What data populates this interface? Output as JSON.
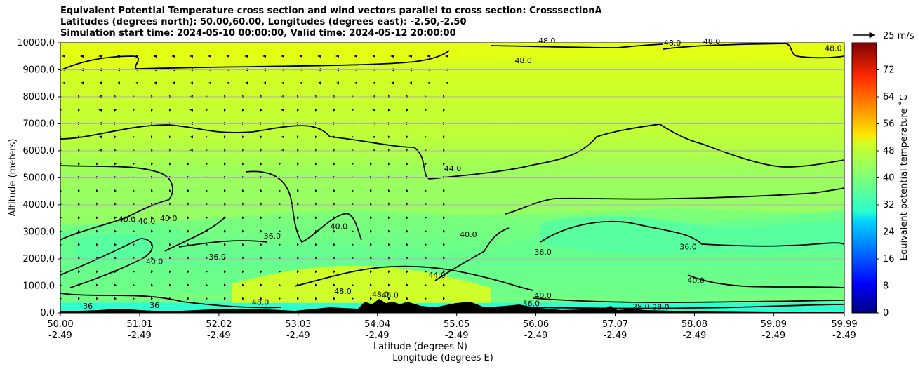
{
  "title_lines": [
    "Equivalent Potential Temperature cross section and wind vectors parallel to cross section: CrosssectionA",
    "Latitudes (degrees north): 50.00,60.00, Longitudes (degrees east): -2.50,-2.50",
    "Simulation start time: 2024-05-10 00:00:00, Valid time: 2024-05-12 20:00:00"
  ],
  "chart_data": {
    "type": "heatmap",
    "ylabel": "Altitude (meters)",
    "xlabel_lines": [
      "Latitude (degrees N)",
      "Longitude (degrees E)"
    ],
    "x_range": [
      50.0,
      59.99
    ],
    "y_range": [
      0,
      10000
    ],
    "y_ticks": [
      "0.0",
      "1000.0",
      "2000.0",
      "3000.0",
      "4000.0",
      "5000.0",
      "6000.0",
      "7000.0",
      "8000.0",
      "9000.0",
      "10000.0"
    ],
    "y_tick_values": [
      0,
      1000,
      2000,
      3000,
      4000,
      5000,
      6000,
      7000,
      8000,
      9000,
      10000
    ],
    "x_ticks": [
      {
        "lat": "50.00",
        "lon": "-2.49",
        "value": 50.0
      },
      {
        "lat": "51.01",
        "lon": "-2.49",
        "value": 51.01
      },
      {
        "lat": "52.02",
        "lon": "-2.49",
        "value": 52.02
      },
      {
        "lat": "53.03",
        "lon": "-2.49",
        "value": 53.03
      },
      {
        "lat": "54.04",
        "lon": "-2.49",
        "value": 54.04
      },
      {
        "lat": "55.05",
        "lon": "-2.49",
        "value": 55.05
      },
      {
        "lat": "56.06",
        "lon": "-2.49",
        "value": 56.06
      },
      {
        "lat": "57.07",
        "lon": "-2.49",
        "value": 57.07
      },
      {
        "lat": "58.08",
        "lon": "-2.49",
        "value": 58.08
      },
      {
        "lat": "59.09",
        "lon": "-2.49",
        "value": 59.09
      },
      {
        "lat": "59.99",
        "lon": "-2.49",
        "value": 59.99
      }
    ],
    "grid": "horizontal",
    "colorbar": {
      "label": "Equivalent potential temperature ˚C",
      "ticks": [
        "0",
        "8",
        "16",
        "24",
        "32",
        "40",
        "48",
        "56",
        "64",
        "72"
      ],
      "tick_values": [
        0,
        8,
        16,
        24,
        32,
        40,
        48,
        56,
        64,
        72
      ],
      "range": [
        0,
        80
      ],
      "colormap": "jet"
    },
    "quiver_key": "25 m/s",
    "contour_labels": [
      {
        "text": "48.0",
        "x": 55.9,
        "y": 9250
      },
      {
        "text": "48.0",
        "x": 56.2,
        "y": 9970
      },
      {
        "text": "48.0",
        "x": 57.8,
        "y": 9900
      },
      {
        "text": "48.0",
        "x": 58.3,
        "y": 9950
      },
      {
        "text": "48.0",
        "x": 59.85,
        "y": 9700
      },
      {
        "text": "44.0",
        "x": 55.0,
        "y": 5250
      },
      {
        "text": "40.0",
        "x": 50.85,
        "y": 3370
      },
      {
        "text": "40.0",
        "x": 51.1,
        "y": 3300
      },
      {
        "text": "40.0",
        "x": 51.38,
        "y": 3400
      },
      {
        "text": "40.0",
        "x": 51.2,
        "y": 1800
      },
      {
        "text": "36.0",
        "x": 52.0,
        "y": 1980
      },
      {
        "text": "36.0",
        "x": 52.7,
        "y": 2750
      },
      {
        "text": "40.0",
        "x": 53.55,
        "y": 3100
      },
      {
        "text": "40.0",
        "x": 55.2,
        "y": 2800
      },
      {
        "text": "44.0",
        "x": 54.8,
        "y": 1300
      },
      {
        "text": "36.0",
        "x": 56.15,
        "y": 2150
      },
      {
        "text": "36.0",
        "x": 58.0,
        "y": 2350
      },
      {
        "text": "40.0",
        "x": 58.1,
        "y": 1100
      },
      {
        "text": "48.0",
        "x": 52.55,
        "y": 300
      },
      {
        "text": "48.0",
        "x": 53.6,
        "y": 700
      },
      {
        "text": "48.0",
        "x": 54.08,
        "y": 580
      },
      {
        "text": "48.0",
        "x": 54.2,
        "y": 560
      },
      {
        "text": "40.0",
        "x": 56.15,
        "y": 550
      },
      {
        "text": "36.0",
        "x": 56.0,
        "y": 250
      },
      {
        "text": "28.0",
        "x": 57.4,
        "y": 130
      },
      {
        "text": "28.0",
        "x": 57.65,
        "y": 120
      },
      {
        "text": "36",
        "x": 50.35,
        "y": 150
      },
      {
        "text": "36",
        "x": 51.2,
        "y": 180
      }
    ]
  }
}
